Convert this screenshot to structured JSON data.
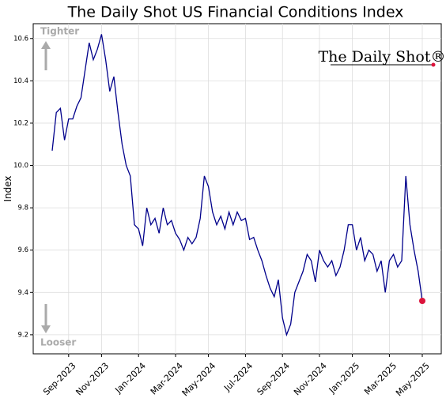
{
  "chart_data": {
    "type": "line",
    "title": "The Daily Shot US Financial Conditions Index",
    "y_label": "Index",
    "annotations": [
      "Tighter",
      "Looser"
    ],
    "logo": "The Daily Shot®",
    "categories": [
      null,
      null,
      null,
      null,
      "Sep-2023",
      null,
      null,
      null,
      null,
      null,
      null,
      null,
      "Nov-2023",
      null,
      null,
      null,
      null,
      null,
      null,
      null,
      null,
      "Jan-2024",
      null,
      null,
      null,
      null,
      null,
      null,
      null,
      null,
      "Mar-2024",
      null,
      null,
      null,
      null,
      null,
      null,
      null,
      "May-2024",
      null,
      null,
      null,
      null,
      null,
      null,
      null,
      null,
      "Jul-2024",
      null,
      null,
      null,
      null,
      null,
      null,
      null,
      null,
      "Sep-2024",
      null,
      null,
      null,
      null,
      null,
      null,
      null,
      null,
      "Nov-2024",
      null,
      null,
      null,
      null,
      null,
      null,
      null,
      "Jan-2025",
      null,
      null,
      null,
      null,
      null,
      null,
      null,
      null,
      "Mar-2025",
      null,
      null,
      null,
      null,
      null,
      null,
      null,
      "May-2025"
    ],
    "series": [
      {
        "name": "US Financial Conditions Index",
        "color": "#00008b",
        "values": [
          10.07,
          10.25,
          10.27,
          10.12,
          10.22,
          10.22,
          10.28,
          10.32,
          10.45,
          10.58,
          10.5,
          10.55,
          10.62,
          10.5,
          10.35,
          10.42,
          10.25,
          10.1,
          10.0,
          9.95,
          9.72,
          9.7,
          9.62,
          9.8,
          9.72,
          9.75,
          9.68,
          9.8,
          9.72,
          9.74,
          9.68,
          9.65,
          9.6,
          9.66,
          9.63,
          9.66,
          9.75,
          9.95,
          9.9,
          9.78,
          9.72,
          9.76,
          9.7,
          9.78,
          9.72,
          9.78,
          9.74,
          9.75,
          9.65,
          9.66,
          9.6,
          9.55,
          9.48,
          9.42,
          9.38,
          9.46,
          9.28,
          9.2,
          9.25,
          9.4,
          9.45,
          9.5,
          9.58,
          9.55,
          9.45,
          9.6,
          9.55,
          9.52,
          9.55,
          9.48,
          9.52,
          9.6,
          9.72,
          9.72,
          9.6,
          9.66,
          9.55,
          9.6,
          9.58,
          9.5,
          9.55,
          9.4,
          9.55,
          9.58,
          9.52,
          9.55,
          9.95,
          9.72,
          9.6,
          9.5,
          9.36
        ]
      }
    ],
    "last_point_color": "#dc143c",
    "ylim": [
      9.11,
      10.67
    ],
    "yticks": [
      9.2,
      9.4,
      9.6,
      9.8,
      {
        "value": 10.0,
        "label": "10.0"
      },
      10.2,
      10.4,
      10.6
    ],
    "grid": true
  }
}
